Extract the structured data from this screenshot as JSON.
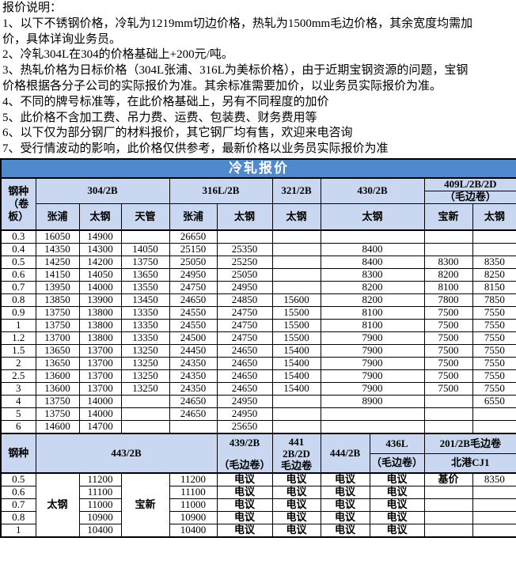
{
  "notes": {
    "lines": [
      "报价说明：",
      "1、以下不锈钢价格，冷轧为1219mm切边价格，热轧为1500mm毛边价格，其余宽度均需加",
      "价，具体详询业务员。",
      "2、冷轧304L在304的价格基础上+200元/吨。",
      "3、热轧价格为日标价格（304L张浦、316L为美标价格），由于近期宝钢资源的问题，宝钢",
      "价格根据各分子公司的实际报价为准。其余标准需要加价，以业务员实际报价为准。",
      "4、不同的牌号标准等，在此价格基础上，另有不同程度的加价",
      "5、此价格不含加工费、吊力费、运费、包装费、财务费用等",
      "6、以下仅为部分钢厂的材料报价，其它钢厂均有售，欢迎来电咨询",
      "7、受行情波动的影响，此价格仅供参考，最新价格以业务员实际报价为准"
    ]
  },
  "table1": {
    "title": "冷轧报价",
    "corner": "钢种（卷板）",
    "groups": [
      {
        "label": "304/2B"
      },
      {
        "label": "316L/2B"
      },
      {
        "label": "321/2B"
      },
      {
        "label": "430/2B"
      },
      {
        "label": "409L/2B/2D",
        "sub": "（毛边卷）"
      }
    ],
    "factories": [
      {
        "label": "张浦",
        "span": 1
      },
      {
        "label": "太钢",
        "span": 1
      },
      {
        "label": "天管",
        "span": 1
      },
      {
        "label": "张浦",
        "span": 1
      },
      {
        "label": "太钢",
        "span": 1
      },
      {
        "label": "太钢",
        "span": 1
      },
      {
        "label": "太钢",
        "span": 2
      },
      {
        "label": "宝新",
        "span": 1
      },
      {
        "label": "太钢",
        "span": 1
      }
    ],
    "rows": [
      [
        "0.3",
        "16050",
        "14900",
        "",
        "26650",
        "",
        "",
        "",
        "",
        ""
      ],
      [
        "0.4",
        "14350",
        "14300",
        "14050",
        "25150",
        "25350",
        "",
        "8400",
        "",
        ""
      ],
      [
        "0.5",
        "14250",
        "14200",
        "13750",
        "25050",
        "25250",
        "",
        "8400",
        "8300",
        "8350"
      ],
      [
        "0.6",
        "14150",
        "14050",
        "13650",
        "24950",
        "25050",
        "",
        "8300",
        "8200",
        "8250"
      ],
      [
        "0.7",
        "13950",
        "14000",
        "13550",
        "24750",
        "24950",
        "",
        "8200",
        "8100",
        "8150"
      ],
      [
        "0.8",
        "13850",
        "13900",
        "13450",
        "24650",
        "24850",
        "15600",
        "8200",
        "7800",
        "7850"
      ],
      [
        "0.9",
        "13750",
        "13800",
        "13350",
        "24550",
        "24750",
        "15500",
        "8100",
        "7500",
        "7550"
      ],
      [
        "1",
        "13750",
        "13800",
        "13350",
        "24550",
        "24750",
        "15500",
        "8100",
        "7500",
        "7550"
      ],
      [
        "1.2",
        "13700",
        "13800",
        "13350",
        "24500",
        "24750",
        "15500",
        "7900",
        "7500",
        "7550"
      ],
      [
        "1.5",
        "13650",
        "13700",
        "13250",
        "24450",
        "24650",
        "15400",
        "7900",
        "7500",
        "7550"
      ],
      [
        "2",
        "13650",
        "13700",
        "13250",
        "24350",
        "24650",
        "15400",
        "7900",
        "7500",
        "7550"
      ],
      [
        "2.5",
        "13600",
        "13700",
        "13250",
        "24350",
        "24650",
        "15400",
        "7900",
        "7500",
        "7550"
      ],
      [
        "3",
        "13600",
        "13700",
        "13250",
        "24350",
        "24650",
        "15400",
        "7900",
        "7500",
        "7550"
      ],
      [
        "4",
        "13750",
        "14000",
        "",
        "24650",
        "24950",
        "",
        "8900",
        "",
        "6550"
      ],
      [
        "5",
        "13750",
        "14000",
        "",
        "24650",
        "24950",
        "",
        "",
        "",
        ""
      ],
      [
        "6",
        "14600",
        "14700",
        "",
        "",
        "25650",
        "",
        "",
        "",
        ""
      ]
    ]
  },
  "table2": {
    "corner": "钢种",
    "group_443": "443/2B",
    "group_439": [
      "439/2B",
      "（毛边卷）"
    ],
    "group_441": [
      "441",
      "2B/2D",
      "毛边卷"
    ],
    "group_444": "444/2B",
    "group_436": [
      "436L",
      "（毛边卷）"
    ],
    "group_201": [
      "201/2B毛边卷",
      "北港CJ1"
    ],
    "mill_left": "太钢",
    "mill_right": "宝新",
    "rows": [
      [
        "0.5",
        "11200",
        "11200",
        "电议",
        "电议",
        "电议",
        "电议",
        "基价",
        "8350"
      ],
      [
        "0.6",
        "11100",
        "11100",
        "电议",
        "电议",
        "电议",
        "电议",
        "",
        ""
      ],
      [
        "0.7",
        "11000",
        "11000",
        "电议",
        "电议",
        "电议",
        "电议",
        "",
        ""
      ],
      [
        "0.8",
        "10900",
        "10900",
        "电议",
        "电议",
        "电议",
        "电议",
        "",
        ""
      ],
      [
        "1",
        "10400",
        "10400",
        "电议",
        "电议",
        "电议",
        "电议",
        "",
        ""
      ]
    ]
  },
  "colors": {
    "title_bar": "#4F89CE",
    "header_bg": "#C9D8F0",
    "border": "#000000",
    "title_text": "#FFFFFF"
  }
}
